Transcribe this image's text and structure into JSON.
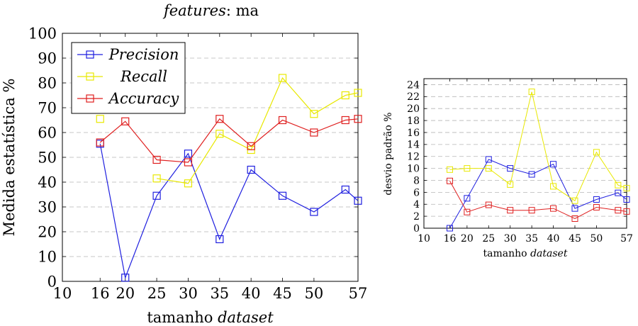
{
  "title_prefix": "features",
  "title_suffix": ": ma",
  "colors": {
    "precision": "#1f1fdf",
    "recall": "#e8e800",
    "accuracy": "#df1f1f",
    "grid": "#b5b5b5",
    "axis": "#000000"
  },
  "chart_data": [
    {
      "type": "line",
      "xlabel_plain": "tamanho ",
      "xlabel_italic": "dataset",
      "ylabel": "Medida estatística %",
      "xlim": [
        10,
        57
      ],
      "ylim": [
        0,
        100
      ],
      "xticks": [
        10,
        16,
        20,
        25,
        30,
        35,
        40,
        45,
        50,
        57
      ],
      "yticks": [
        0,
        10,
        20,
        30,
        40,
        50,
        60,
        70,
        80,
        90,
        100
      ],
      "grid": "horizontal dashed",
      "legend_position": "top-left",
      "x": [
        16,
        20,
        25,
        30,
        35,
        40,
        45,
        50,
        55,
        57
      ],
      "series": [
        {
          "name": "Precision",
          "color_key": "precision",
          "values": [
            55.5,
            1.5,
            34.5,
            51.5,
            17,
            45,
            34.5,
            28,
            37,
            32.5
          ]
        },
        {
          "name": "Recall",
          "color_key": "recall",
          "values": [
            65.5,
            null,
            41.5,
            39.5,
            59.5,
            53,
            82,
            67.5,
            75,
            76
          ]
        },
        {
          "name": "Accuracy",
          "color_key": "accuracy",
          "values": [
            56,
            64.5,
            49,
            48,
            65.5,
            54.5,
            65,
            60,
            65,
            65.5
          ]
        }
      ]
    },
    {
      "type": "line",
      "xlabel_plain": "tamanho ",
      "xlabel_italic": "dataset",
      "ylabel": "desvio padrão %",
      "xlim": [
        10,
        57
      ],
      "ylim": [
        0,
        25
      ],
      "xticks": [
        10,
        16,
        20,
        25,
        30,
        35,
        40,
        45,
        50,
        57
      ],
      "yticks": [
        0,
        2,
        4,
        6,
        8,
        10,
        12,
        14,
        16,
        18,
        20,
        22,
        24
      ],
      "grid": "horizontal dashed",
      "x": [
        16,
        20,
        25,
        30,
        35,
        40,
        45,
        50,
        55,
        57
      ],
      "series": [
        {
          "name": "Precision",
          "color_key": "precision",
          "values": [
            0,
            5,
            11.5,
            10,
            9,
            10.7,
            3.3,
            4.8,
            5.9,
            4.8
          ]
        },
        {
          "name": "Recall",
          "color_key": "recall",
          "values": [
            9.8,
            10,
            10,
            7.3,
            22.8,
            7,
            4.6,
            12.7,
            7.2,
            6.7
          ]
        },
        {
          "name": "Accuracy",
          "color_key": "accuracy",
          "values": [
            7.9,
            2.7,
            3.9,
            3,
            3,
            3.3,
            1.6,
            3.5,
            3,
            2.8
          ]
        }
      ]
    }
  ]
}
